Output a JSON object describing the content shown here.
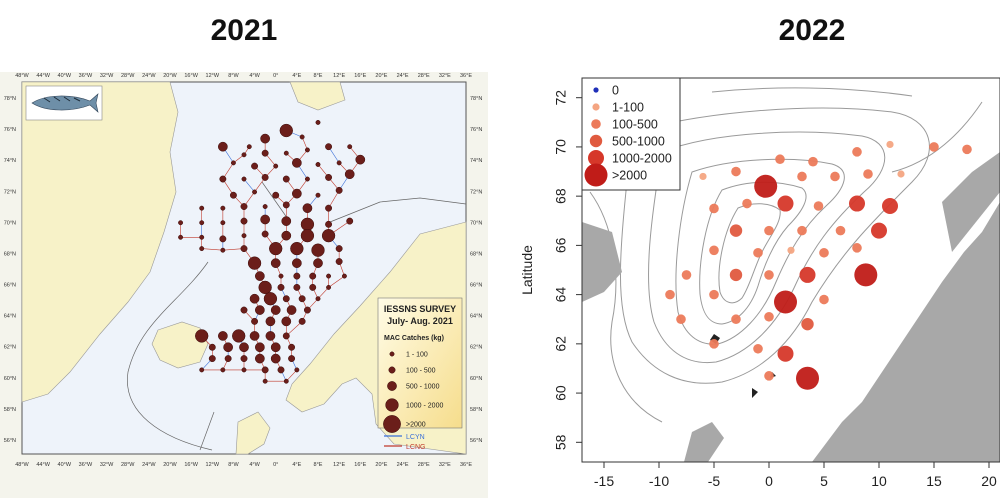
{
  "titles": {
    "left": "2021",
    "right": "2022"
  },
  "chart_data": [
    {
      "type": "scatter",
      "title": "2021",
      "map_box_title": "IESSNS SURVEY",
      "map_box_subtitle": "July- Aug. 2021",
      "legend_title": "MAC Catches (kg)",
      "legend": [
        "1 - 100",
        "100 - 500",
        "500 - 1000",
        "1000 - 2000",
        ">2000"
      ],
      "line_legend": [
        {
          "label": "LCYN",
          "color": "#3a6fd8"
        },
        {
          "label": "LCNG",
          "color": "#c0392b"
        }
      ],
      "x_ticks": [
        "48°W",
        "44°W",
        "40°W",
        "36°W",
        "32°W",
        "28°W",
        "24°W",
        "20°W",
        "16°W",
        "12°W",
        "8°W",
        "4°W",
        "0°",
        "4°E",
        "8°E",
        "12°E",
        "16°E",
        "20°E",
        "24°E",
        "28°E",
        "32°E",
        "36°E"
      ],
      "y_ticks": [
        "78°N",
        "76°N",
        "74°N",
        "72°N",
        "70°N",
        "68°N",
        "66°N",
        "64°N",
        "62°N",
        "60°N",
        "58°N",
        "56°N"
      ],
      "xlim": [
        -48,
        36
      ],
      "ylim": [
        56,
        79
      ],
      "marker_color": "#6b1e1a",
      "points": [
        {
          "x": 2,
          "y": 76,
          "c": 4
        },
        {
          "x": -2,
          "y": 75.5,
          "c": 3
        },
        {
          "x": 5,
          "y": 75.6,
          "c": 1
        },
        {
          "x": 8,
          "y": 76.5,
          "c": 1
        },
        {
          "x": -5,
          "y": 75.0,
          "c": 1
        },
        {
          "x": -10,
          "y": 75,
          "c": 3
        },
        {
          "x": -6,
          "y": 74.5,
          "c": 1
        },
        {
          "x": -2,
          "y": 74.6,
          "c": 2
        },
        {
          "x": 2,
          "y": 74.6,
          "c": 1
        },
        {
          "x": 6,
          "y": 74.8,
          "c": 1
        },
        {
          "x": 10,
          "y": 75,
          "c": 2
        },
        {
          "x": 14,
          "y": 75,
          "c": 1
        },
        {
          "x": -8,
          "y": 74,
          "c": 1
        },
        {
          "x": -4,
          "y": 73.8,
          "c": 2
        },
        {
          "x": 0,
          "y": 73.8,
          "c": 1
        },
        {
          "x": 4,
          "y": 74,
          "c": 3
        },
        {
          "x": 8,
          "y": 73.9,
          "c": 1
        },
        {
          "x": 12,
          "y": 74,
          "c": 1
        },
        {
          "x": 16,
          "y": 74.2,
          "c": 3
        },
        {
          "x": -10,
          "y": 73,
          "c": 2
        },
        {
          "x": -6,
          "y": 73,
          "c": 1
        },
        {
          "x": -2,
          "y": 73.1,
          "c": 2
        },
        {
          "x": 2,
          "y": 73,
          "c": 2
        },
        {
          "x": 6,
          "y": 73,
          "c": 1
        },
        {
          "x": 10,
          "y": 73.1,
          "c": 2
        },
        {
          "x": 14,
          "y": 73.3,
          "c": 3
        },
        {
          "x": -8,
          "y": 72,
          "c": 2
        },
        {
          "x": -4,
          "y": 72.2,
          "c": 1
        },
        {
          "x": 0,
          "y": 72,
          "c": 2
        },
        {
          "x": 4,
          "y": 72.1,
          "c": 3
        },
        {
          "x": 8,
          "y": 72,
          "c": 1
        },
        {
          "x": 12,
          "y": 72.3,
          "c": 2
        },
        {
          "x": -14,
          "y": 71.2,
          "c": 1
        },
        {
          "x": -10,
          "y": 71.2,
          "c": 1
        },
        {
          "x": -6,
          "y": 71.3,
          "c": 2
        },
        {
          "x": -2,
          "y": 71.3,
          "c": 1
        },
        {
          "x": 2,
          "y": 71.4,
          "c": 2
        },
        {
          "x": 6,
          "y": 71.2,
          "c": 3
        },
        {
          "x": 10,
          "y": 71.2,
          "c": 2
        },
        {
          "x": -18,
          "y": 70.3,
          "c": 1
        },
        {
          "x": -14,
          "y": 70.3,
          "c": 1
        },
        {
          "x": -10,
          "y": 70.3,
          "c": 1
        },
        {
          "x": -6,
          "y": 70.4,
          "c": 2
        },
        {
          "x": -2,
          "y": 70.5,
          "c": 3
        },
        {
          "x": 2,
          "y": 70.4,
          "c": 3
        },
        {
          "x": 6,
          "y": 70.2,
          "c": 4
        },
        {
          "x": 10,
          "y": 70.2,
          "c": 2
        },
        {
          "x": 14,
          "y": 70.4,
          "c": 2
        },
        {
          "x": -18,
          "y": 69.4,
          "c": 1
        },
        {
          "x": -14,
          "y": 69.4,
          "c": 1
        },
        {
          "x": -10,
          "y": 69.3,
          "c": 2
        },
        {
          "x": -6,
          "y": 69.5,
          "c": 1
        },
        {
          "x": -2,
          "y": 69.6,
          "c": 2
        },
        {
          "x": 2,
          "y": 69.5,
          "c": 3
        },
        {
          "x": 6,
          "y": 69.5,
          "c": 4
        },
        {
          "x": 10,
          "y": 69.5,
          "c": 4
        },
        {
          "x": -14,
          "y": 68.7,
          "c": 1
        },
        {
          "x": -10,
          "y": 68.6,
          "c": 1
        },
        {
          "x": -6,
          "y": 68.7,
          "c": 2
        },
        {
          "x": 0,
          "y": 68.7,
          "c": 4
        },
        {
          "x": 4,
          "y": 68.7,
          "c": 4
        },
        {
          "x": 8,
          "y": 68.6,
          "c": 4
        },
        {
          "x": 12,
          "y": 68.7,
          "c": 2
        },
        {
          "x": -4,
          "y": 67.8,
          "c": 4
        },
        {
          "x": 0,
          "y": 67.8,
          "c": 3
        },
        {
          "x": 4,
          "y": 67.8,
          "c": 3
        },
        {
          "x": 8,
          "y": 67.8,
          "c": 3
        },
        {
          "x": 12,
          "y": 67.9,
          "c": 2
        },
        {
          "x": -3,
          "y": 67,
          "c": 3
        },
        {
          "x": 1,
          "y": 67,
          "c": 1
        },
        {
          "x": 4,
          "y": 67,
          "c": 2
        },
        {
          "x": 7,
          "y": 67,
          "c": 2
        },
        {
          "x": 10,
          "y": 67,
          "c": 1
        },
        {
          "x": 13,
          "y": 67,
          "c": 1
        },
        {
          "x": -2,
          "y": 66.3,
          "c": 4
        },
        {
          "x": 1,
          "y": 66.3,
          "c": 2
        },
        {
          "x": 4,
          "y": 66.3,
          "c": 2
        },
        {
          "x": 7,
          "y": 66.3,
          "c": 2
        },
        {
          "x": 10,
          "y": 66.3,
          "c": 1
        },
        {
          "x": -4,
          "y": 65.6,
          "c": 3
        },
        {
          "x": -1,
          "y": 65.6,
          "c": 4
        },
        {
          "x": 2,
          "y": 65.6,
          "c": 2
        },
        {
          "x": 5,
          "y": 65.6,
          "c": 2
        },
        {
          "x": 8,
          "y": 65.6,
          "c": 1
        },
        {
          "x": -6,
          "y": 64.9,
          "c": 2
        },
        {
          "x": -3,
          "y": 64.9,
          "c": 3
        },
        {
          "x": 0,
          "y": 64.9,
          "c": 3
        },
        {
          "x": 3,
          "y": 64.9,
          "c": 3
        },
        {
          "x": 6,
          "y": 64.9,
          "c": 2
        },
        {
          "x": -4,
          "y": 64.2,
          "c": 2
        },
        {
          "x": -1,
          "y": 64.2,
          "c": 3
        },
        {
          "x": 2,
          "y": 64.2,
          "c": 3
        },
        {
          "x": 5,
          "y": 64.2,
          "c": 2
        },
        {
          "x": -14,
          "y": 63.3,
          "c": 4
        },
        {
          "x": -10,
          "y": 63.3,
          "c": 3
        },
        {
          "x": -7,
          "y": 63.3,
          "c": 4
        },
        {
          "x": -4,
          "y": 63.3,
          "c": 3
        },
        {
          "x": -1,
          "y": 63.3,
          "c": 3
        },
        {
          "x": 2,
          "y": 63.3,
          "c": 2
        },
        {
          "x": -12,
          "y": 62.6,
          "c": 2
        },
        {
          "x": -9,
          "y": 62.6,
          "c": 3
        },
        {
          "x": -6,
          "y": 62.6,
          "c": 3
        },
        {
          "x": -3,
          "y": 62.6,
          "c": 3
        },
        {
          "x": 0,
          "y": 62.6,
          "c": 3
        },
        {
          "x": 3,
          "y": 62.6,
          "c": 2
        },
        {
          "x": -12,
          "y": 61.9,
          "c": 2
        },
        {
          "x": -9,
          "y": 61.9,
          "c": 2
        },
        {
          "x": -6,
          "y": 61.9,
          "c": 2
        },
        {
          "x": -3,
          "y": 61.9,
          "c": 3
        },
        {
          "x": 0,
          "y": 61.9,
          "c": 3
        },
        {
          "x": 3,
          "y": 61.9,
          "c": 2
        },
        {
          "x": -14,
          "y": 61.2,
          "c": 1
        },
        {
          "x": -10,
          "y": 61.2,
          "c": 1
        },
        {
          "x": -6,
          "y": 61.2,
          "c": 1
        },
        {
          "x": -2,
          "y": 61.2,
          "c": 2
        },
        {
          "x": 1,
          "y": 61.2,
          "c": 2
        },
        {
          "x": 4,
          "y": 61.2,
          "c": 1
        },
        {
          "x": -2,
          "y": 60.5,
          "c": 1
        },
        {
          "x": 2,
          "y": 60.5,
          "c": 1
        }
      ]
    },
    {
      "type": "scatter",
      "title": "2022",
      "ylabel": "Latitude",
      "legend": [
        "0",
        "1-100",
        "100-500",
        "500-1000",
        "1000-2000",
        ">2000"
      ],
      "legend_colors": [
        "#1f2fb8",
        "#f4a582",
        "#ec7a5a",
        "#e05a3f",
        "#d6382a",
        "#c01c18"
      ],
      "x_ticks": [
        -15,
        -10,
        -5,
        0,
        5,
        10,
        15,
        20
      ],
      "y_ticks": [
        58,
        60,
        62,
        64,
        66,
        68,
        70,
        72
      ],
      "xlim": [
        -17,
        21
      ],
      "ylim": [
        57.2,
        72.8
      ],
      "points": [
        {
          "x": 15,
          "y": 70,
          "c": 2
        },
        {
          "x": 18,
          "y": 69.9,
          "c": 2
        },
        {
          "x": 8,
          "y": 69.8,
          "c": 2
        },
        {
          "x": 11,
          "y": 70.1,
          "c": 1
        },
        {
          "x": 4,
          "y": 69.4,
          "c": 2
        },
        {
          "x": 1,
          "y": 69.5,
          "c": 2
        },
        {
          "x": -3,
          "y": 69,
          "c": 2
        },
        {
          "x": -6,
          "y": 68.8,
          "c": 1
        },
        {
          "x": 3,
          "y": 68.8,
          "c": 2
        },
        {
          "x": 6,
          "y": 68.8,
          "c": 2
        },
        {
          "x": 9,
          "y": 68.9,
          "c": 2
        },
        {
          "x": 12,
          "y": 68.9,
          "c": 1
        },
        {
          "x": -0.3,
          "y": 68.4,
          "c": 5
        },
        {
          "x": -2,
          "y": 67.7,
          "c": 2
        },
        {
          "x": -5,
          "y": 67.5,
          "c": 2
        },
        {
          "x": 1.5,
          "y": 67.7,
          "c": 4
        },
        {
          "x": 4.5,
          "y": 67.6,
          "c": 2
        },
        {
          "x": 8,
          "y": 67.7,
          "c": 4
        },
        {
          "x": 11,
          "y": 67.6,
          "c": 4
        },
        {
          "x": -3,
          "y": 66.6,
          "c": 3
        },
        {
          "x": 0,
          "y": 66.6,
          "c": 2
        },
        {
          "x": 3,
          "y": 66.6,
          "c": 2
        },
        {
          "x": 6.5,
          "y": 66.6,
          "c": 2
        },
        {
          "x": 10,
          "y": 66.6,
          "c": 4
        },
        {
          "x": -5,
          "y": 65.8,
          "c": 2
        },
        {
          "x": -1,
          "y": 65.7,
          "c": 2
        },
        {
          "x": 2,
          "y": 65.8,
          "c": 1
        },
        {
          "x": 5,
          "y": 65.7,
          "c": 2
        },
        {
          "x": 8,
          "y": 65.9,
          "c": 2
        },
        {
          "x": -7.5,
          "y": 64.8,
          "c": 2
        },
        {
          "x": -3,
          "y": 64.8,
          "c": 3
        },
        {
          "x": 0,
          "y": 64.8,
          "c": 2
        },
        {
          "x": 3.5,
          "y": 64.8,
          "c": 4
        },
        {
          "x": 8.8,
          "y": 64.8,
          "c": 5
        },
        {
          "x": -9,
          "y": 64,
          "c": 2
        },
        {
          "x": -5,
          "y": 64,
          "c": 2
        },
        {
          "x": 1.5,
          "y": 63.7,
          "c": 5
        },
        {
          "x": 5,
          "y": 63.8,
          "c": 2
        },
        {
          "x": -8,
          "y": 63,
          "c": 2
        },
        {
          "x": -3,
          "y": 63,
          "c": 2
        },
        {
          "x": 0,
          "y": 63.1,
          "c": 2
        },
        {
          "x": 3.5,
          "y": 62.8,
          "c": 3
        },
        {
          "x": -5,
          "y": 62,
          "c": 2
        },
        {
          "x": -1,
          "y": 61.8,
          "c": 2
        },
        {
          "x": 1.5,
          "y": 61.6,
          "c": 4
        },
        {
          "x": 0,
          "y": 60.7,
          "c": 2
        },
        {
          "x": 3.5,
          "y": 60.6,
          "c": 5
        }
      ]
    }
  ]
}
